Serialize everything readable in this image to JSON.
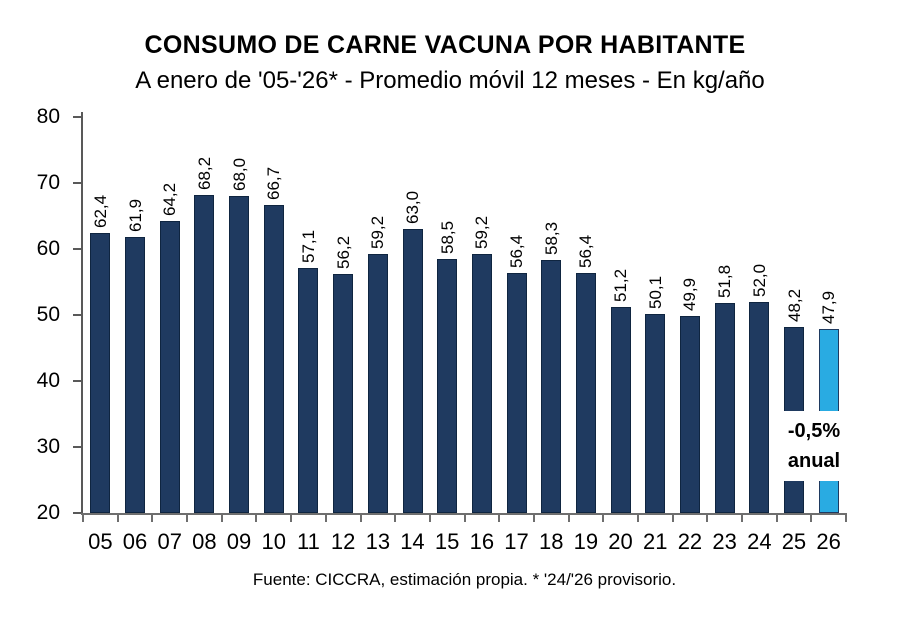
{
  "header": {
    "title": "CONSUMO DE CARNE VACUNA POR HABITANTE",
    "subtitle": "A enero de '05-'26* - Promedio móvil 12 meses -  En kg/año"
  },
  "footer": {
    "source": "Fuente: CICCRA, estimación propia. * '24/'26 provisorio."
  },
  "annotation": {
    "line1": "-0,5%",
    "line2": "anual"
  },
  "colors": {
    "bar": "#1F3A60",
    "bar_border": "#0F2540",
    "highlight_bar": "#29ABE2",
    "highlight_border": "#1F3A60",
    "axis": "#595959",
    "text": "#000000",
    "background": "#FFFFFF"
  },
  "chart_data": {
    "type": "bar",
    "title": "CONSUMO DE CARNE VACUNA POR HABITANTE",
    "subtitle": "A enero de '05-'26* - Promedio móvil 12 meses -  En kg/año",
    "ylabel": "kg/año",
    "xlabel": "",
    "categories": [
      "05",
      "06",
      "07",
      "08",
      "09",
      "10",
      "11",
      "12",
      "13",
      "14",
      "15",
      "16",
      "17",
      "18",
      "19",
      "20",
      "21",
      "22",
      "23",
      "24",
      "25",
      "26"
    ],
    "values": [
      62.4,
      61.9,
      64.2,
      68.2,
      68.0,
      66.7,
      57.1,
      56.2,
      59.2,
      63.0,
      58.5,
      59.2,
      56.4,
      58.3,
      56.4,
      51.2,
      50.1,
      49.9,
      51.8,
      52.0,
      48.2,
      47.9
    ],
    "labels": [
      "62,4",
      "61,9",
      "64,2",
      "68,2",
      "68,0",
      "66,7",
      "57,1",
      "56,2",
      "59,2",
      "63,0",
      "58,5",
      "59,2",
      "56,4",
      "58,3",
      "56,4",
      "51,2",
      "50,1",
      "49,9",
      "51,8",
      "52,0",
      "48,2",
      "47,9"
    ],
    "ylim": [
      20,
      80
    ],
    "yticks": [
      20,
      30,
      40,
      50,
      60,
      70,
      80
    ],
    "grid": false,
    "legend": false,
    "highlight_index": 21,
    "annotation_text": "-0,5% anual",
    "source": "Fuente: CICCRA, estimación propia. * '24/'26 provisorio."
  }
}
